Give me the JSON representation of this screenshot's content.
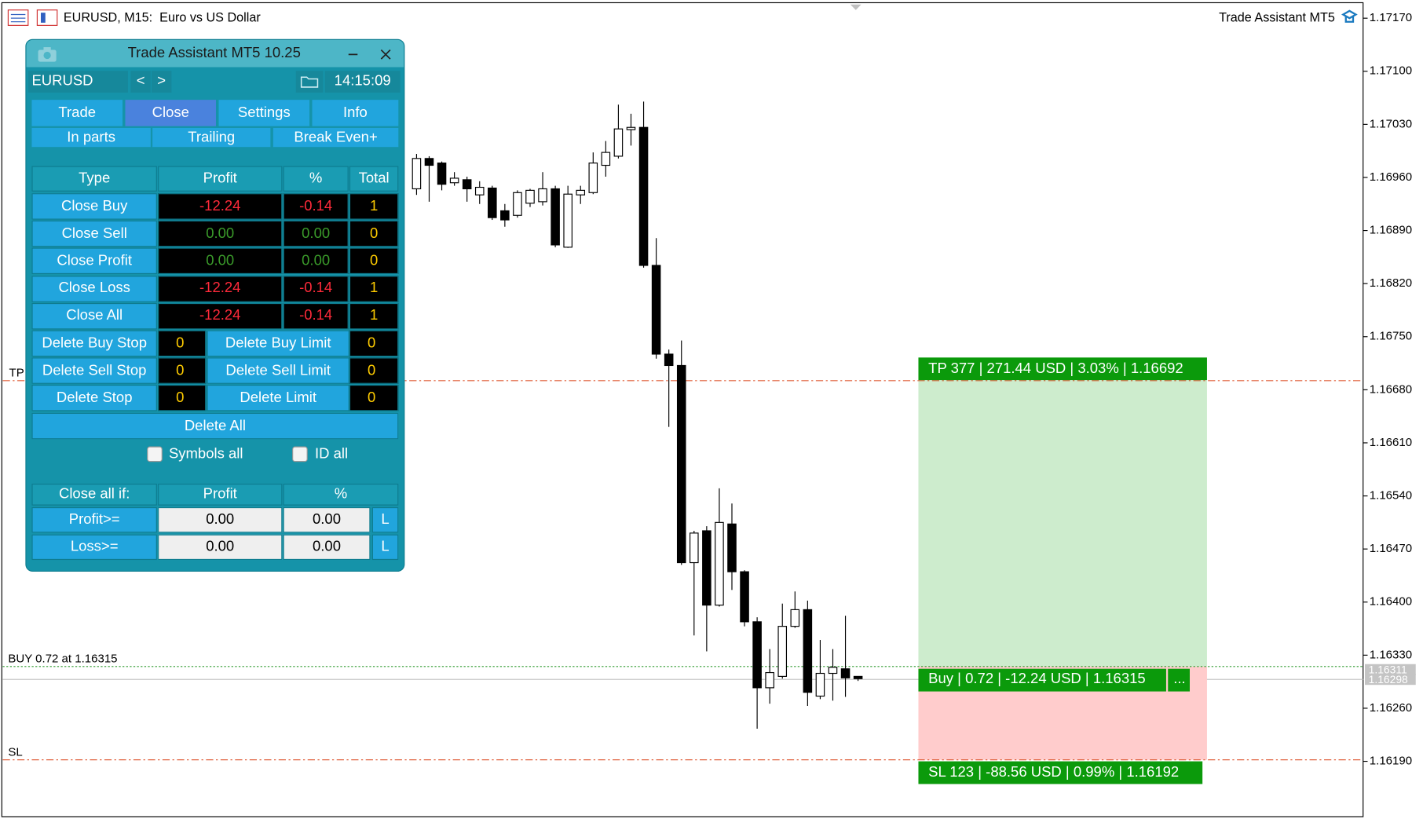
{
  "header": {
    "symbol_info": "EURUSD, M15:  Euro vs US Dollar",
    "indicator": "Trade Assistant MT5"
  },
  "panel": {
    "title": "Trade Assistant MT5 10.25",
    "symbol": "EURUSD",
    "prev": "<",
    "next": ">",
    "time": "14:15:09",
    "tabs": [
      "Trade",
      "Close",
      "Settings",
      "Info"
    ],
    "subtabs": [
      "In parts",
      "Trailing",
      "Break Even+"
    ],
    "table_header": [
      "Type",
      "Profit",
      "%",
      "Total"
    ],
    "rows": [
      [
        "Close Buy",
        "-12.24",
        "-0.14",
        "1"
      ],
      [
        "Close Sell",
        "0.00",
        "0.00",
        "0"
      ],
      [
        "Close Profit",
        "0.00",
        "0.00",
        "0"
      ],
      [
        "Close Loss",
        "-12.24",
        "-0.14",
        "1"
      ],
      [
        "Close All",
        "-12.24",
        "-0.14",
        "1"
      ]
    ],
    "pending_rows": [
      [
        "Delete Buy Stop",
        "0",
        "Delete Buy Limit",
        "0"
      ],
      [
        "Delete Sell Stop",
        "0",
        "Delete Sell Limit",
        "0"
      ],
      [
        "Delete Stop",
        "0",
        "Delete Limit",
        "0"
      ]
    ],
    "delete_all": "Delete All",
    "checkboxes": [
      "Symbols all",
      "ID all"
    ],
    "close_if_header": [
      "Close all if:",
      "Profit",
      "%"
    ],
    "close_if_rows": [
      [
        "Profit>=",
        "0.00",
        "0.00",
        "L"
      ],
      [
        "Loss>=",
        "0.00",
        "0.00",
        "L"
      ]
    ]
  },
  "chart": {
    "ylim": [
      1.16117,
      1.17194
    ],
    "yticks": [
      {
        "value": 1.1717,
        "label": "1.17170"
      },
      {
        "value": 1.171,
        "label": "1.17100"
      },
      {
        "value": 1.1703,
        "label": "1.17030"
      },
      {
        "value": 1.1696,
        "label": "1.16960"
      },
      {
        "value": 1.1689,
        "label": "1.16890"
      },
      {
        "value": 1.1682,
        "label": "1.16820"
      },
      {
        "value": 1.1675,
        "label": "1.16750"
      },
      {
        "value": 1.1668,
        "label": "1.16680"
      },
      {
        "value": 1.1661,
        "label": "1.16610"
      },
      {
        "value": 1.1654,
        "label": "1.16540"
      },
      {
        "value": 1.1647,
        "label": "1.16470"
      },
      {
        "value": 1.164,
        "label": "1.16400"
      },
      {
        "value": 1.1633,
        "label": "1.16330"
      },
      {
        "value": 1.1626,
        "label": "1.16260"
      },
      {
        "value": 1.1619,
        "label": "1.16190"
      }
    ],
    "price_tags": [
      {
        "value": 1.16311,
        "label": "1.16311"
      },
      {
        "value": 1.16298,
        "label": "1.16298"
      }
    ],
    "candles": [
      {
        "open": 1.16945,
        "high": 1.16991,
        "low": 1.16937,
        "close": 1.16985
      },
      {
        "open": 1.16985,
        "high": 1.16988,
        "low": 1.16928,
        "close": 1.16976
      },
      {
        "open": 1.16979,
        "high": 1.16981,
        "low": 1.16943,
        "close": 1.16951
      },
      {
        "open": 1.16953,
        "high": 1.16967,
        "low": 1.16949,
        "close": 1.16959
      },
      {
        "open": 1.16957,
        "high": 1.16961,
        "low": 1.16928,
        "close": 1.16945
      },
      {
        "open": 1.16937,
        "high": 1.16955,
        "low": 1.16925,
        "close": 1.16947
      },
      {
        "open": 1.16946,
        "high": 1.16949,
        "low": 1.16904,
        "close": 1.16907
      },
      {
        "open": 1.16916,
        "high": 1.16925,
        "low": 1.16895,
        "close": 1.16904
      },
      {
        "open": 1.1691,
        "high": 1.16943,
        "low": 1.16907,
        "close": 1.1694
      },
      {
        "open": 1.16926,
        "high": 1.16945,
        "low": 1.16921,
        "close": 1.16943
      },
      {
        "open": 1.16928,
        "high": 1.16967,
        "low": 1.16923,
        "close": 1.16945
      },
      {
        "open": 1.16945,
        "high": 1.16949,
        "low": 1.16868,
        "close": 1.16871
      },
      {
        "open": 1.16868,
        "high": 1.16949,
        "low": 1.16867,
        "close": 1.16938
      },
      {
        "open": 1.16937,
        "high": 1.16949,
        "low": 1.16925,
        "close": 1.16943
      },
      {
        "open": 1.1694,
        "high": 1.16993,
        "low": 1.16938,
        "close": 1.16979
      },
      {
        "open": 1.16976,
        "high": 1.17008,
        "low": 1.16961,
        "close": 1.16993
      },
      {
        "open": 1.16988,
        "high": 1.17056,
        "low": 1.16985,
        "close": 1.17024
      },
      {
        "open": 1.17023,
        "high": 1.17044,
        "low": 1.17002,
        "close": 1.17026
      },
      {
        "open": 1.17026,
        "high": 1.1706,
        "low": 1.16841,
        "close": 1.16844
      },
      {
        "open": 1.16844,
        "high": 1.1688,
        "low": 1.16721,
        "close": 1.16727
      },
      {
        "open": 1.16727,
        "high": 1.16733,
        "low": 1.16631,
        "close": 1.16712
      },
      {
        "open": 1.16712,
        "high": 1.16745,
        "low": 1.16449,
        "close": 1.16452
      },
      {
        "open": 1.16452,
        "high": 1.16494,
        "low": 1.16356,
        "close": 1.16491
      },
      {
        "open": 1.16494,
        "high": 1.165,
        "low": 1.16335,
        "close": 1.16396
      },
      {
        "open": 1.16396,
        "high": 1.1655,
        "low": 1.16394,
        "close": 1.16505
      },
      {
        "open": 1.16503,
        "high": 1.1653,
        "low": 1.16416,
        "close": 1.1644
      },
      {
        "open": 1.1644,
        "high": 1.16442,
        "low": 1.16368,
        "close": 1.16374
      },
      {
        "open": 1.16374,
        "high": 1.1638,
        "low": 1.16233,
        "close": 1.16287
      },
      {
        "open": 1.16287,
        "high": 1.16338,
        "low": 1.16266,
        "close": 1.16307
      },
      {
        "open": 1.16302,
        "high": 1.16398,
        "low": 1.16299,
        "close": 1.16368
      },
      {
        "open": 1.16368,
        "high": 1.16414,
        "low": 1.16366,
        "close": 1.1639
      },
      {
        "open": 1.1639,
        "high": 1.16402,
        "low": 1.16263,
        "close": 1.16281
      },
      {
        "open": 1.16276,
        "high": 1.1635,
        "low": 1.16272,
        "close": 1.16306
      },
      {
        "open": 1.16306,
        "high": 1.16338,
        "low": 1.1627,
        "close": 1.16314
      },
      {
        "open": 1.16312,
        "high": 1.16382,
        "low": 1.16275,
        "close": 1.163
      },
      {
        "open": 1.16302,
        "high": 1.16302,
        "low": 1.16296,
        "close": 1.16299
      }
    ],
    "tp_price": 1.16692,
    "buy_price": 1.16315,
    "sl_price": 1.16192,
    "bid_price": 1.16298,
    "tp_label": "TP",
    "buy_label": "BUY 0.72 at 1.16315",
    "sl_label": "SL",
    "tp_box": "TP 377 | 271.44 USD | 3.03% | 1.16692",
    "buy_box": "Buy | 0.72 | -12.24 USD | 1.16315",
    "buy_more": "...",
    "sl_box": "SL 123 | -88.56 USD | 0.99% | 1.16192"
  }
}
